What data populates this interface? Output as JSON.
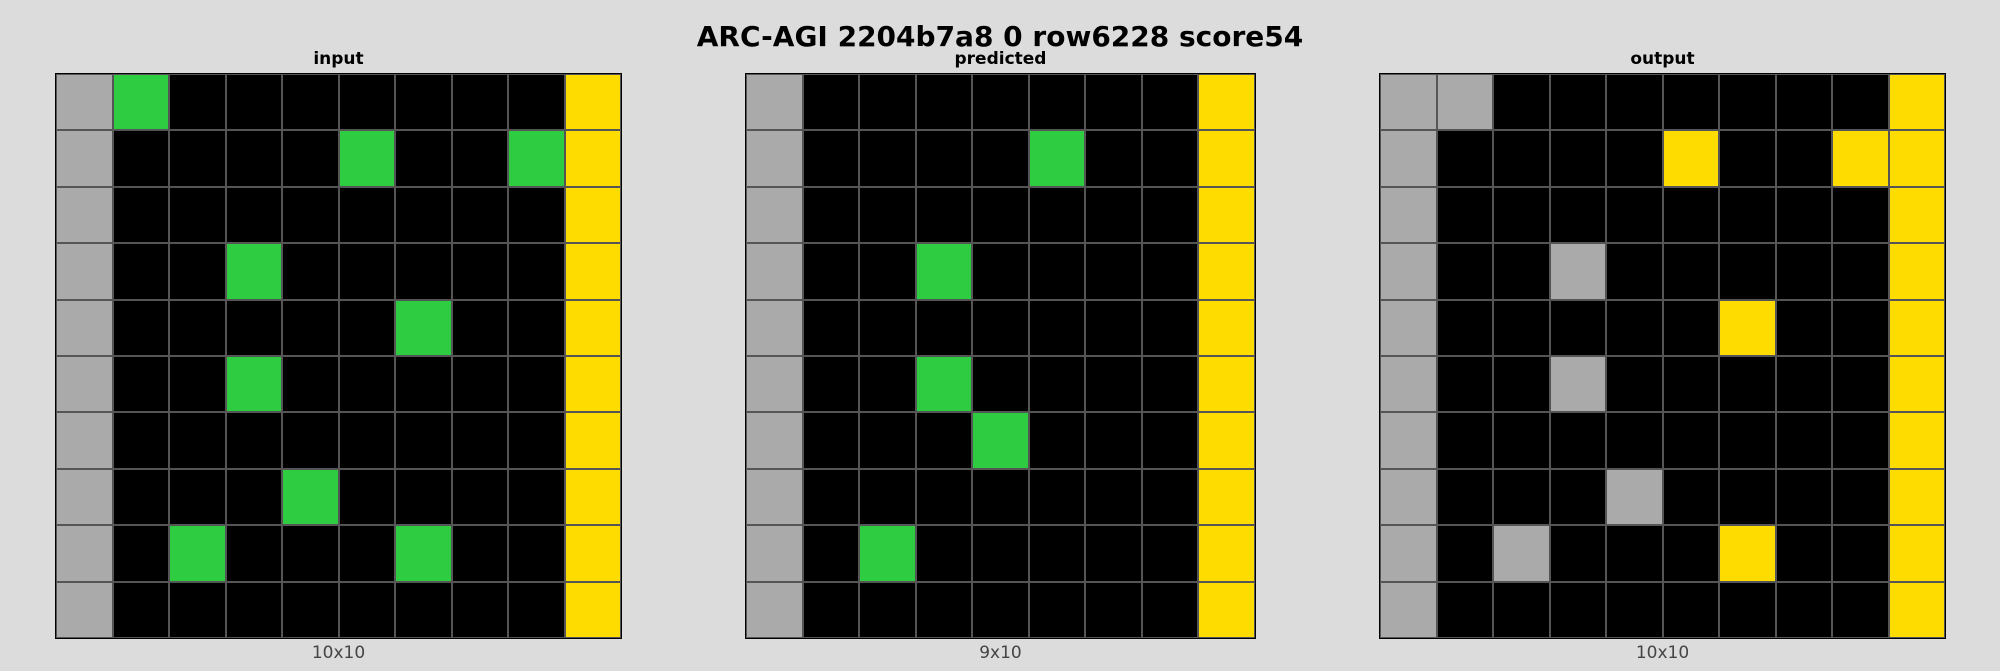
{
  "title": "ARC-AGI 2204b7a8 0 row6228 score54",
  "palette": {
    "0": "#000000",
    "3": "#2ecc40",
    "4": "#ffdc00",
    "5": "#aaaaaa"
  },
  "panels": [
    {
      "title": "input",
      "dims": "10x10",
      "grid": [
        [
          5,
          3,
          0,
          0,
          0,
          0,
          0,
          0,
          0,
          4
        ],
        [
          5,
          0,
          0,
          0,
          0,
          3,
          0,
          0,
          3,
          4
        ],
        [
          5,
          0,
          0,
          0,
          0,
          0,
          0,
          0,
          0,
          4
        ],
        [
          5,
          0,
          0,
          3,
          0,
          0,
          0,
          0,
          0,
          4
        ],
        [
          5,
          0,
          0,
          0,
          0,
          0,
          3,
          0,
          0,
          4
        ],
        [
          5,
          0,
          0,
          3,
          0,
          0,
          0,
          0,
          0,
          4
        ],
        [
          5,
          0,
          0,
          0,
          0,
          0,
          0,
          0,
          0,
          4
        ],
        [
          5,
          0,
          0,
          0,
          3,
          0,
          0,
          0,
          0,
          4
        ],
        [
          5,
          0,
          3,
          0,
          0,
          0,
          3,
          0,
          0,
          4
        ],
        [
          5,
          0,
          0,
          0,
          0,
          0,
          0,
          0,
          0,
          4
        ]
      ]
    },
    {
      "title": "predicted",
      "dims": "9x10",
      "grid": [
        [
          5,
          0,
          0,
          0,
          0,
          0,
          0,
          0,
          4
        ],
        [
          5,
          0,
          0,
          0,
          0,
          3,
          0,
          0,
          4
        ],
        [
          5,
          0,
          0,
          0,
          0,
          0,
          0,
          0,
          4
        ],
        [
          5,
          0,
          0,
          3,
          0,
          0,
          0,
          0,
          4
        ],
        [
          5,
          0,
          0,
          0,
          0,
          0,
          0,
          0,
          4
        ],
        [
          5,
          0,
          0,
          3,
          0,
          0,
          0,
          0,
          4
        ],
        [
          5,
          0,
          0,
          0,
          3,
          0,
          0,
          0,
          4
        ],
        [
          5,
          0,
          0,
          0,
          0,
          0,
          0,
          0,
          4
        ],
        [
          5,
          0,
          3,
          0,
          0,
          0,
          0,
          0,
          4
        ],
        [
          5,
          0,
          0,
          0,
          0,
          0,
          0,
          0,
          4
        ]
      ]
    },
    {
      "title": "output",
      "dims": "10x10",
      "grid": [
        [
          5,
          5,
          0,
          0,
          0,
          0,
          0,
          0,
          0,
          4
        ],
        [
          5,
          0,
          0,
          0,
          0,
          4,
          0,
          0,
          4,
          4
        ],
        [
          5,
          0,
          0,
          0,
          0,
          0,
          0,
          0,
          0,
          4
        ],
        [
          5,
          0,
          0,
          5,
          0,
          0,
          0,
          0,
          0,
          4
        ],
        [
          5,
          0,
          0,
          0,
          0,
          0,
          4,
          0,
          0,
          4
        ],
        [
          5,
          0,
          0,
          5,
          0,
          0,
          0,
          0,
          0,
          4
        ],
        [
          5,
          0,
          0,
          0,
          0,
          0,
          0,
          0,
          0,
          4
        ],
        [
          5,
          0,
          0,
          0,
          5,
          0,
          0,
          0,
          0,
          4
        ],
        [
          5,
          0,
          5,
          0,
          0,
          0,
          4,
          0,
          0,
          4
        ],
        [
          5,
          0,
          0,
          0,
          0,
          0,
          0,
          0,
          0,
          4
        ]
      ]
    }
  ]
}
